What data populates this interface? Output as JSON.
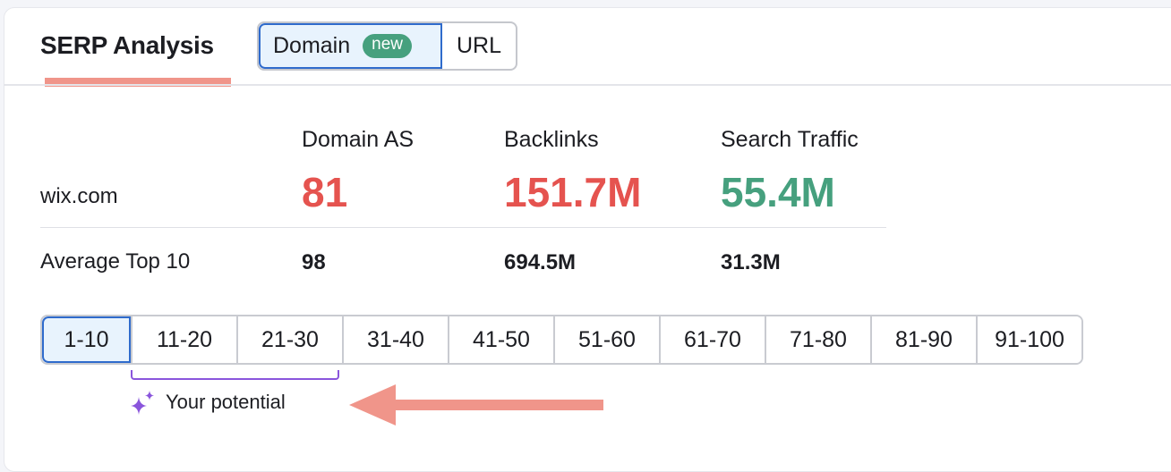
{
  "header": {
    "title": "SERP Analysis",
    "toggle": [
      {
        "label": "Domain",
        "badge": "new",
        "active": true
      },
      {
        "label": "URL",
        "active": false
      }
    ]
  },
  "metrics": {
    "columns": [
      "Domain AS",
      "Backlinks",
      "Search Traffic"
    ],
    "domain": {
      "name": "wix.com",
      "values": [
        "81",
        "151.7M",
        "55.4M"
      ]
    },
    "average": {
      "label": "Average Top 10",
      "values": [
        "98",
        "694.5M",
        "31.3M"
      ]
    }
  },
  "colors": {
    "red": "#e5534f",
    "green": "#46a07e",
    "accent": "#2f6bcc",
    "arrow": "#f0958a",
    "purple": "#8a55dc"
  },
  "pagination": {
    "pages": [
      "1-10",
      "11-20",
      "21-30",
      "31-40",
      "41-50",
      "51-60",
      "61-70",
      "71-80",
      "81-90",
      "91-100"
    ],
    "selected": "1-10"
  },
  "potential": {
    "label": "Your potential",
    "icon": "sparkle-icon"
  }
}
